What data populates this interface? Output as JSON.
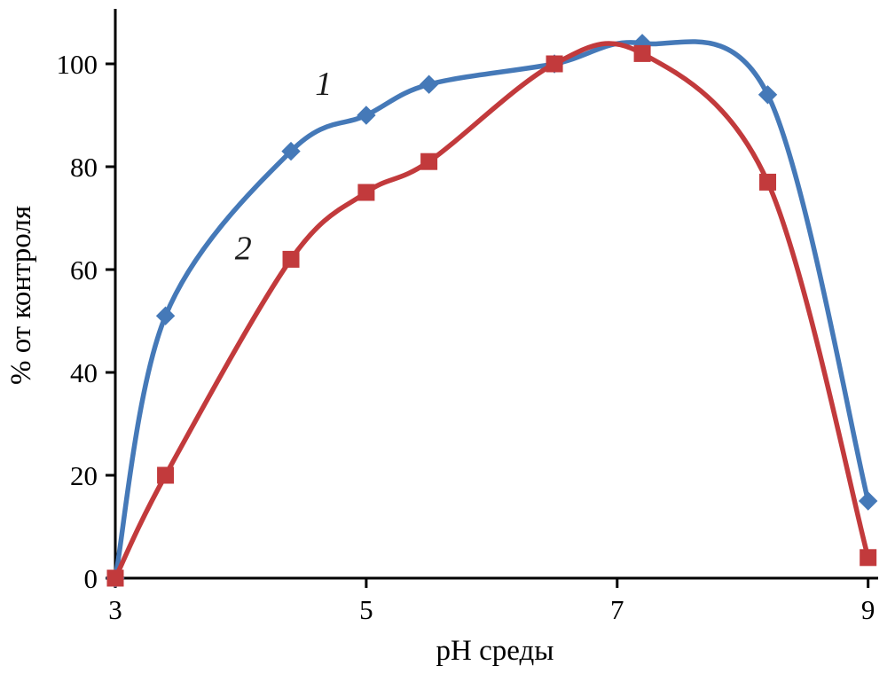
{
  "chart_data": {
    "type": "line",
    "title": "",
    "xlabel": "pH среды",
    "ylabel": "% от контроля",
    "x": [
      3.0,
      3.4,
      4.4,
      5.0,
      5.5,
      6.5,
      7.2,
      8.2,
      9.0
    ],
    "series": [
      {
        "name": "1",
        "marker": "diamond",
        "color": "#4579b8",
        "values": [
          0,
          51,
          83,
          90,
          96,
          100,
          104,
          94,
          15
        ]
      },
      {
        "name": "2",
        "marker": "square",
        "color": "#c23a3c",
        "values": [
          0,
          20,
          62,
          75,
          81,
          100,
          102,
          77,
          4
        ]
      }
    ],
    "series_labels": [
      {
        "text": "1",
        "x": 4.66,
        "y": 94
      },
      {
        "text": "2",
        "x": 4.02,
        "y": 62
      }
    ],
    "xticks": [
      3,
      5,
      7,
      9
    ],
    "yticks": [
      0,
      20,
      40,
      60,
      80,
      100
    ],
    "xlim": [
      3,
      9.08
    ],
    "ylim": [
      0,
      110
    ],
    "grid": false,
    "legend_position": "none",
    "axis_color": "#000000"
  }
}
